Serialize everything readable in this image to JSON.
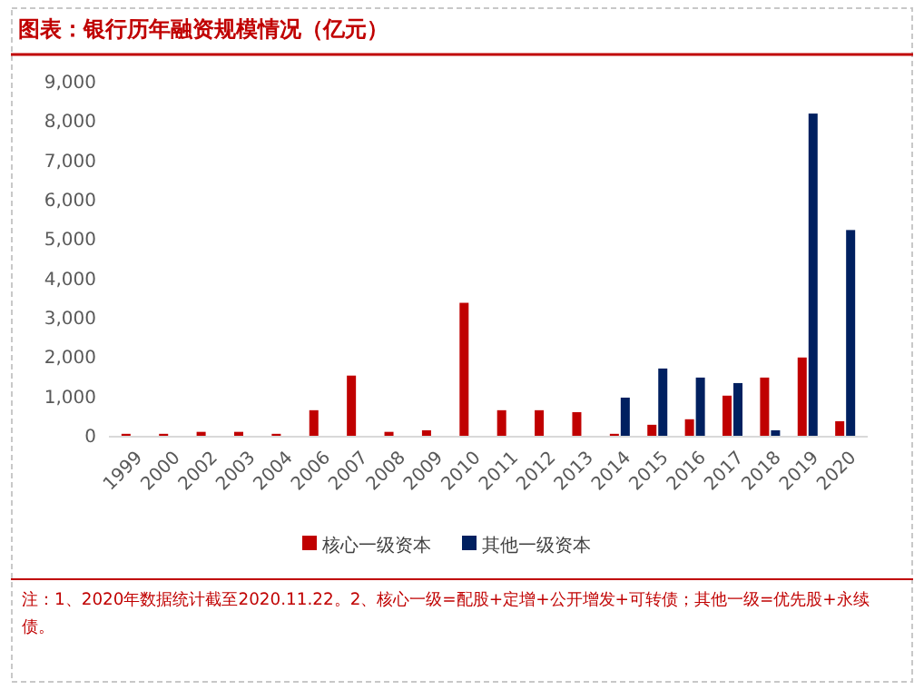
{
  "chart_data": {
    "type": "bar",
    "title": "图表：银行历年融资规模情况（亿元）",
    "categories": [
      "1999",
      "2000",
      "2002",
      "2003",
      "2004",
      "2006",
      "2007",
      "2008",
      "2009",
      "2010",
      "2011",
      "2012",
      "2013",
      "2014",
      "2015",
      "2016",
      "2017",
      "2018",
      "2019",
      "2020"
    ],
    "series": [
      {
        "name": "核心一级资本",
        "color": "#c00000",
        "values": [
          50,
          50,
          100,
          100,
          50,
          650,
          1530,
          100,
          140,
          3380,
          650,
          650,
          600,
          50,
          280,
          420,
          1020,
          1480,
          1990,
          370
        ]
      },
      {
        "name": "其他一级资本",
        "color": "#002060",
        "values": [
          null,
          null,
          null,
          null,
          null,
          null,
          null,
          null,
          null,
          null,
          null,
          null,
          null,
          970,
          1710,
          1480,
          1340,
          140,
          8190,
          5230
        ]
      }
    ],
    "ylim": [
      0,
      9000
    ],
    "yticks": [
      0,
      {
        "value": 1000,
        "label": "1,000"
      },
      {
        "value": 2000,
        "label": "2,000"
      },
      {
        "value": 3000,
        "label": "3,000"
      },
      {
        "value": 4000,
        "label": "4,000"
      },
      {
        "value": 5000,
        "label": "5,000"
      },
      {
        "value": 6000,
        "label": "6,000"
      },
      {
        "value": 7000,
        "label": "7,000"
      },
      {
        "value": 8000,
        "label": "8,000"
      },
      {
        "value": 9000,
        "label": "9,000"
      }
    ],
    "grid": false,
    "legend": "bottom",
    "annotations": [
      "注：1、2020年数据统计截至2020.11.22。2、核心一级=配股+定增+公开增发+可转债；其他一级=优先股+永续债。"
    ]
  }
}
